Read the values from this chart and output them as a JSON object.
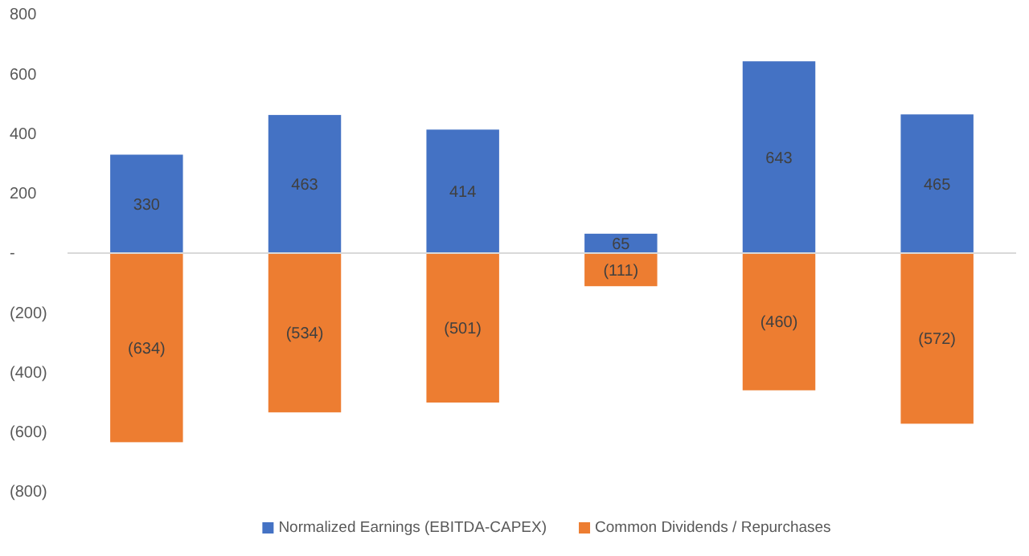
{
  "chart_data": {
    "type": "bar",
    "stacked": true,
    "categories": [
      null,
      null,
      null,
      null,
      null,
      null
    ],
    "series": [
      {
        "name": "Normalized Earnings (EBITDA-CAPEX)",
        "color": "#4472c4",
        "values": [
          330,
          463,
          414,
          65,
          643,
          465
        ],
        "value_labels": [
          "330",
          "463",
          "414",
          "65",
          "643",
          "465"
        ]
      },
      {
        "name": "Common Dividends / Repurchases",
        "color": "#ed7d31",
        "values": [
          -634,
          -534,
          -501,
          -111,
          -460,
          -572
        ],
        "value_labels": [
          "(634)",
          "(534)",
          "(501)",
          "(111)",
          "(460)",
          "(572)"
        ]
      }
    ],
    "ylim": [
      -800,
      800
    ],
    "yticks": [
      {
        "value": -800,
        "label": "(800)"
      },
      {
        "value": -600,
        "label": "(600)"
      },
      {
        "value": -400,
        "label": "(400)"
      },
      {
        "value": -200,
        "label": "(200)"
      },
      {
        "value": 0,
        "label": "-"
      },
      200,
      400,
      600,
      800
    ],
    "ref_lines": [
      {
        "axis": "y",
        "value": 0,
        "color": "#d9d9d9"
      }
    ],
    "grid": false,
    "legend": "bottom"
  }
}
